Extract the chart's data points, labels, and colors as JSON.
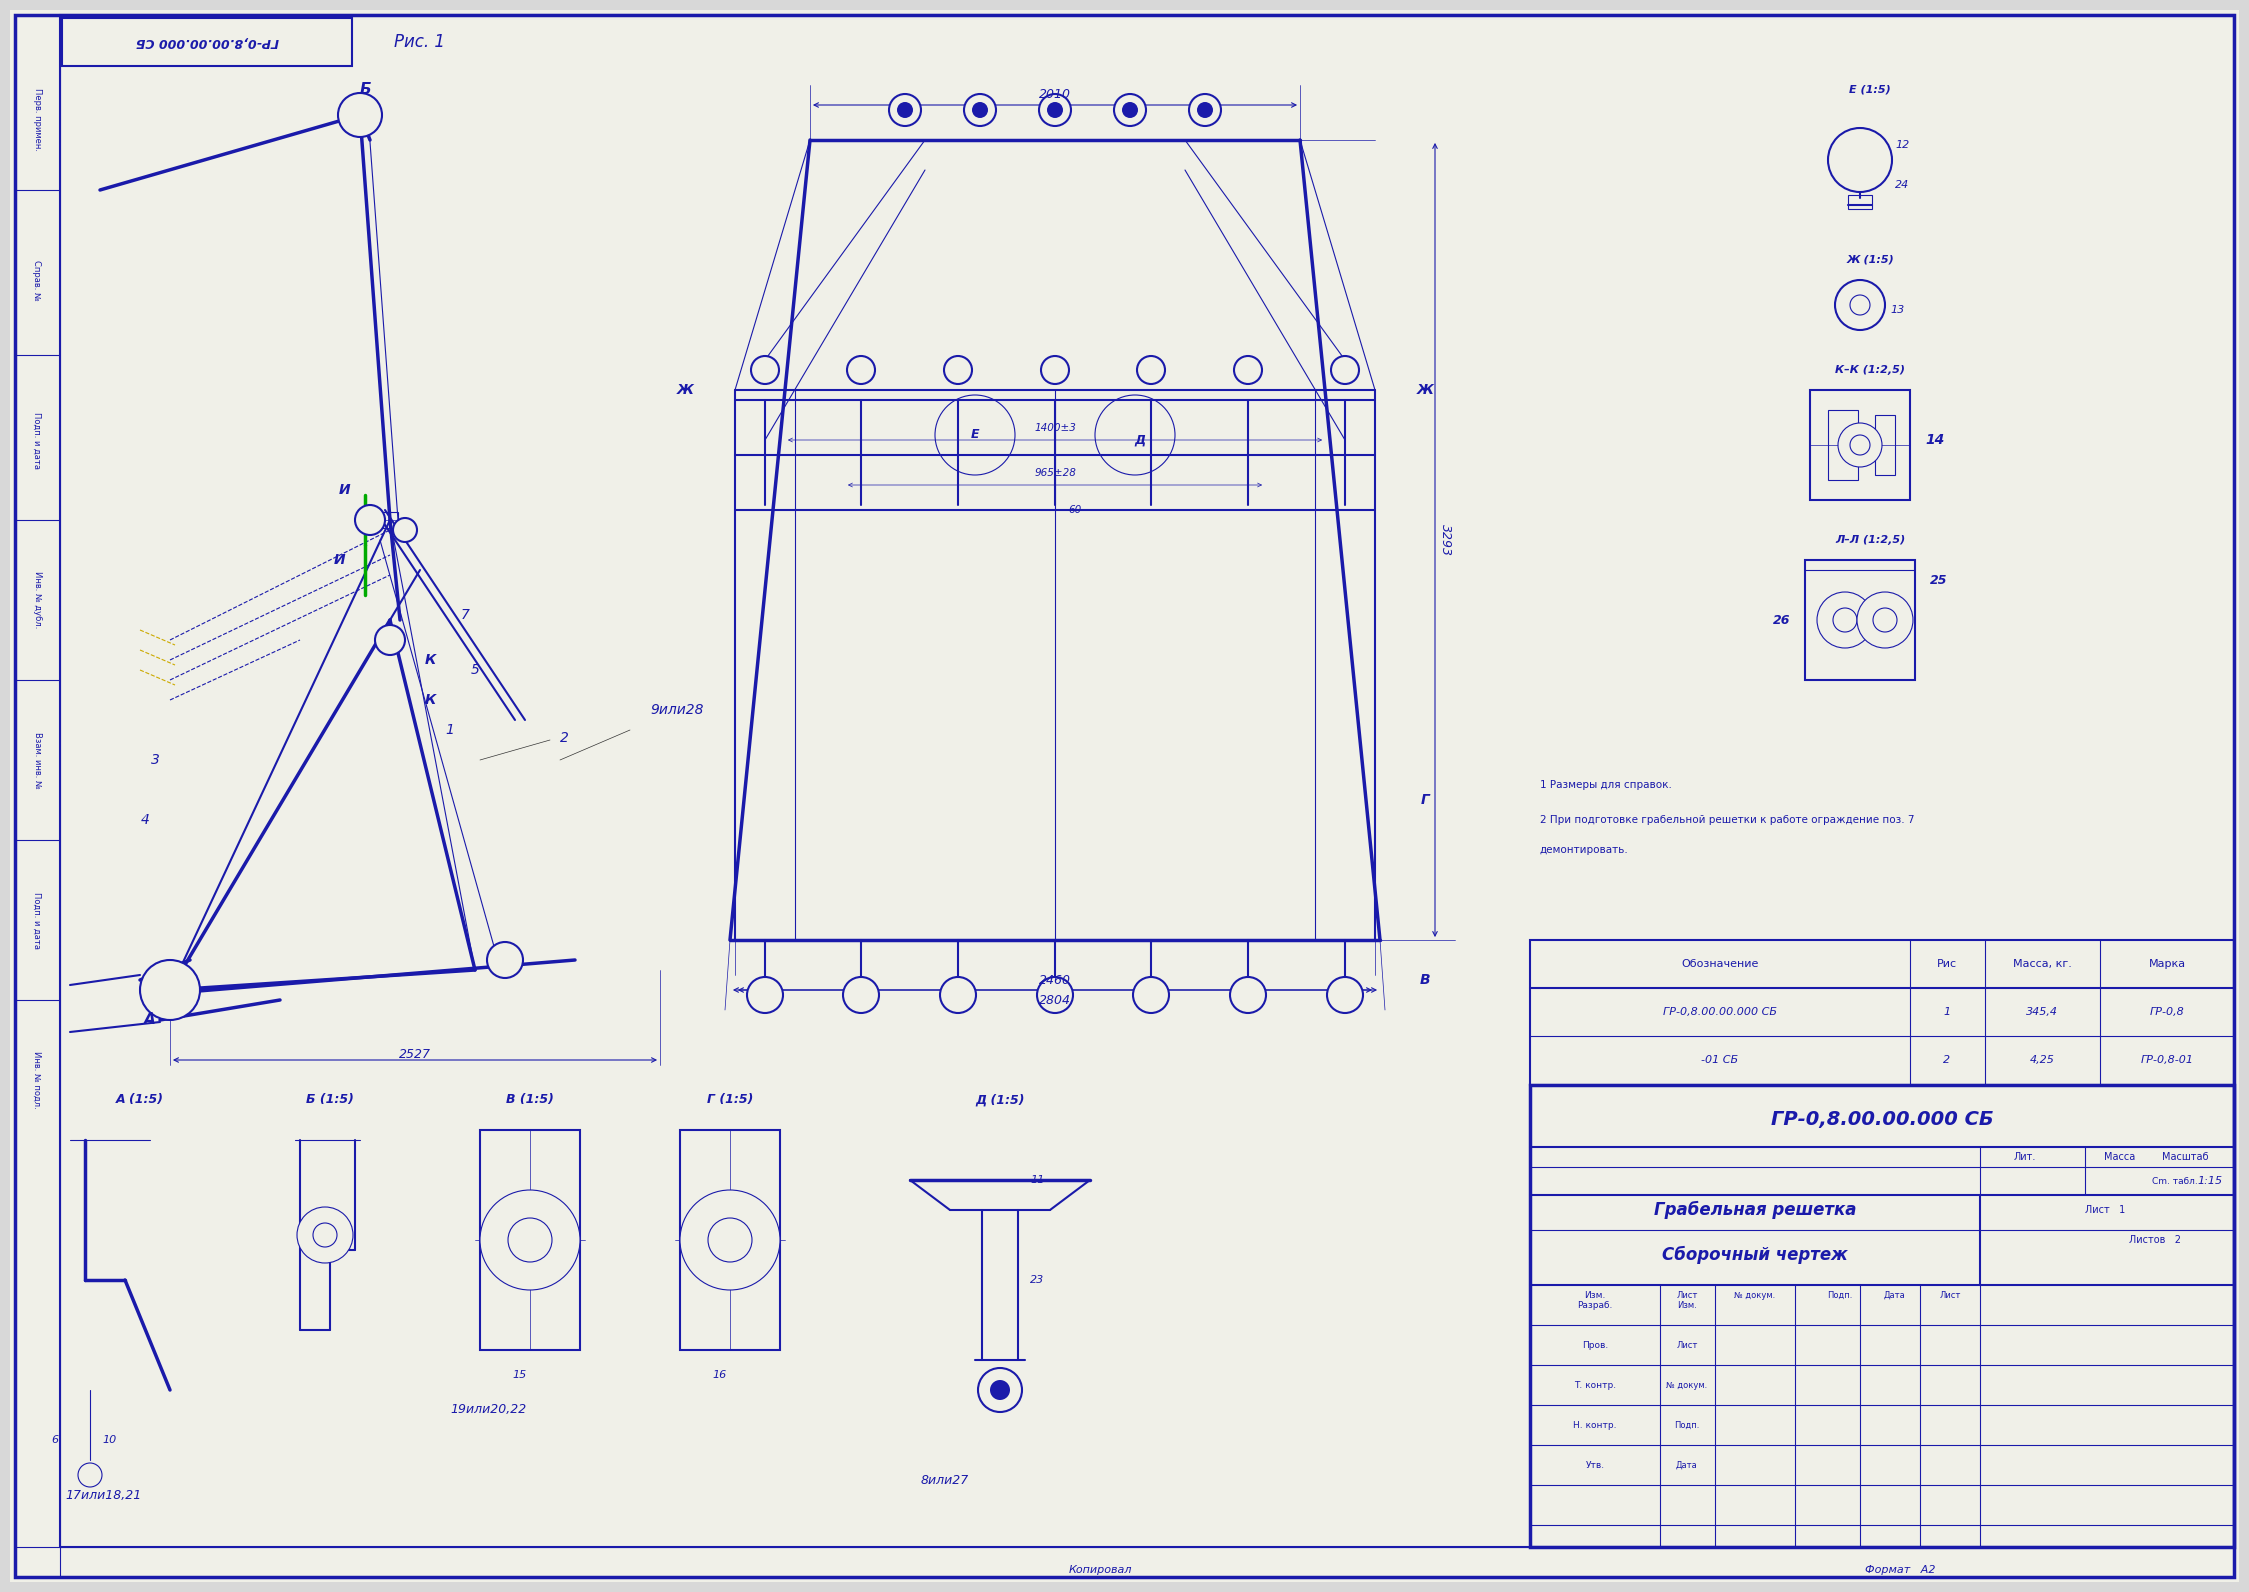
{
  "bg_color": "#d8d8d8",
  "paper_color": "#f0f0e8",
  "line_color": "#1a1aaa",
  "text_color": "#1a1aaa",
  "black": "#000000",
  "stamp_text": "ГР-0,8.00.00.000 СБ",
  "drawing_title1": "Грабельная решетка",
  "drawing_title2": "Сборочный чертеж",
  "fig_label": "Рис. 1",
  "corner_stamp": "ГР-0,8.00.00.000 СБ",
  "format_text": "Формат   A2",
  "copy_text": "Копировал",
  "notes": [
    "1 Размеры для справок.",
    "2 При подготовке грабельной решетки к работе ограждение поз. 7",
    "демонтировать."
  ],
  "table_rows": [
    [
      "ГР-0,8.00.00.000 СБ",
      "1",
      "345,4",
      "ГР-0,8"
    ],
    [
      "-01 СБ",
      "2",
      "4,25",
      "ГР-0,8-01"
    ]
  ]
}
